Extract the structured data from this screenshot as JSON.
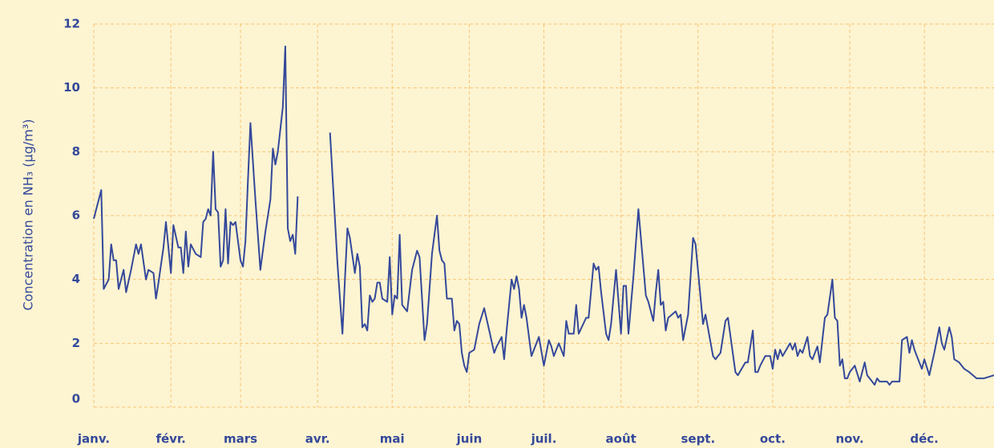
{
  "chart_data": {
    "type": "line",
    "ylabel": "Concentration en NH₃ (µg/m³)",
    "xlim": [
      0,
      362
    ],
    "xticks": [
      {
        "value": 0,
        "label": "janv."
      },
      {
        "value": 31,
        "label": "févr."
      },
      {
        "value": 59,
        "label": "mars"
      },
      {
        "value": 90,
        "label": "avr."
      },
      {
        "value": 120,
        "label": "mai"
      },
      {
        "value": 151,
        "label": "juin"
      },
      {
        "value": 181,
        "label": "juil."
      },
      {
        "value": 212,
        "label": "août"
      },
      {
        "value": 243,
        "label": "sept."
      },
      {
        "value": 273,
        "label": "oct."
      },
      {
        "value": 304,
        "label": "nov."
      },
      {
        "value": 334,
        "label": "déc."
      }
    ],
    "ylim": [
      0,
      12
    ],
    "yticks": [
      0,
      2,
      4,
      6,
      8,
      10,
      12
    ],
    "grid": true,
    "color": "#34489a",
    "x": [
      0,
      3,
      4,
      6,
      7,
      8,
      9,
      10,
      12,
      13,
      15,
      17,
      18,
      19,
      21,
      22,
      24,
      25,
      26,
      28,
      29,
      31,
      32,
      34,
      35,
      36,
      37,
      38,
      39,
      41,
      43,
      44,
      45,
      46,
      47,
      48,
      49,
      50,
      51,
      52,
      53,
      54,
      55,
      56,
      57,
      59,
      60,
      61,
      62,
      63,
      65,
      67,
      69,
      71,
      72,
      73,
      74,
      76,
      77,
      78,
      79,
      80,
      81,
      82,
      88,
      95,
      98,
      100,
      101,
      102,
      103,
      105,
      106,
      107,
      108,
      109,
      110,
      111,
      112,
      113,
      114,
      115,
      116,
      118,
      119,
      120,
      121,
      122,
      123,
      124,
      126,
      128,
      130,
      131,
      133,
      134,
      136,
      138,
      139,
      140,
      141,
      142,
      143,
      144,
      145,
      146,
      147,
      148,
      149,
      150,
      151,
      153,
      155,
      157,
      159,
      161,
      162,
      164,
      165,
      166,
      168,
      169,
      170,
      171,
      172,
      173,
      174,
      176,
      179,
      181,
      183,
      184,
      185,
      187,
      189,
      190,
      191,
      193,
      194,
      195,
      198,
      199,
      201,
      202,
      203,
      204,
      206,
      207,
      208,
      210,
      212,
      213,
      214,
      215,
      217,
      219,
      222,
      223,
      225,
      226,
      227,
      228,
      229,
      230,
      231,
      234,
      235,
      236,
      237,
      239,
      241,
      242,
      245,
      246,
      249,
      250,
      252,
      254,
      255,
      258,
      259,
      262,
      263,
      265,
      266,
      267,
      268,
      270,
      272,
      273,
      274,
      275,
      276,
      277,
      280,
      281,
      282,
      283,
      284,
      285,
      287,
      288,
      289,
      291,
      292,
      294,
      295,
      297,
      298,
      299,
      300,
      301,
      302,
      303,
      304,
      306,
      308,
      310,
      311,
      312,
      314,
      315,
      316,
      318,
      319,
      320,
      321,
      322,
      324,
      325,
      327,
      328,
      329,
      330,
      333,
      334,
      336,
      338,
      340,
      341,
      342,
      344,
      345,
      346,
      348,
      350,
      352,
      355,
      358,
      362
    ],
    "values": [
      5.9,
      6.8,
      3.7,
      4.0,
      5.1,
      4.6,
      4.6,
      3.7,
      4.3,
      3.6,
      4.3,
      5.1,
      4.8,
      5.1,
      4.0,
      4.3,
      4.2,
      3.4,
      3.9,
      5.0,
      5.8,
      4.2,
      5.7,
      5.0,
      5.0,
      4.2,
      5.5,
      4.4,
      5.1,
      4.8,
      4.7,
      5.8,
      5.9,
      6.2,
      6.0,
      8.0,
      6.2,
      6.1,
      4.4,
      4.6,
      6.2,
      4.5,
      5.8,
      5.7,
      5.8,
      4.6,
      4.4,
      5.2,
      7.1,
      8.9,
      6.5,
      4.3,
      5.5,
      6.5,
      8.1,
      7.6,
      8.0,
      9.4,
      11.3,
      5.6,
      5.2,
      5.4,
      4.8,
      6.6,
      null,
      8.6,
      4.5,
      2.3,
      4.0,
      5.6,
      5.3,
      4.2,
      4.8,
      4.4,
      2.5,
      2.6,
      2.4,
      3.5,
      3.3,
      3.4,
      3.9,
      3.9,
      3.4,
      3.3,
      4.7,
      2.9,
      3.5,
      3.4,
      5.4,
      3.2,
      3.0,
      4.3,
      4.9,
      4.7,
      2.1,
      2.6,
      4.8,
      6.0,
      4.9,
      4.6,
      4.5,
      3.4,
      3.4,
      3.4,
      2.4,
      2.7,
      2.6,
      1.7,
      1.3,
      1.1,
      1.7,
      1.8,
      2.6,
      3.1,
      2.4,
      1.7,
      1.9,
      2.2,
      1.5,
      2.4,
      4.0,
      3.7,
      4.1,
      3.7,
      2.8,
      3.2,
      2.8,
      1.6,
      2.2,
      1.3,
      2.1,
      1.9,
      1.6,
      2.0,
      1.6,
      2.7,
      2.3,
      2.3,
      3.2,
      2.3,
      2.8,
      2.8,
      4.5,
      4.3,
      4.4,
      3.6,
      2.3,
      2.1,
      2.6,
      4.3,
      2.3,
      3.8,
      3.8,
      2.3,
      4.1,
      6.2,
      3.5,
      3.3,
      2.7,
      3.6,
      4.3,
      3.2,
      3.3,
      2.4,
      2.8,
      3.0,
      2.8,
      2.9,
      2.1,
      2.9,
      5.3,
      5.1,
      2.6,
      2.9,
      1.6,
      1.5,
      1.7,
      2.7,
      2.8,
      1.1,
      1.0,
      1.4,
      1.4,
      2.4,
      1.1,
      1.1,
      1.3,
      1.6,
      1.6,
      1.2,
      1.8,
      1.5,
      1.8,
      1.6,
      2.0,
      1.8,
      2.0,
      1.6,
      1.8,
      1.7,
      2.2,
      1.6,
      1.5,
      1.9,
      1.4,
      2.8,
      2.9,
      4.0,
      2.8,
      2.7,
      1.3,
      1.5,
      0.9,
      0.9,
      1.1,
      1.3,
      0.8,
      1.4,
      1.0,
      0.9,
      0.7,
      0.9,
      0.8,
      0.8,
      0.8,
      0.7,
      0.8,
      0.8,
      0.8,
      2.1,
      2.2,
      1.7,
      2.1,
      1.8,
      1.2,
      1.5,
      1.0,
      1.7,
      2.5,
      2.0,
      1.8,
      2.5,
      2.2,
      1.5,
      1.4,
      1.2,
      1.1,
      0.9,
      0.9,
      1.0
    ]
  }
}
